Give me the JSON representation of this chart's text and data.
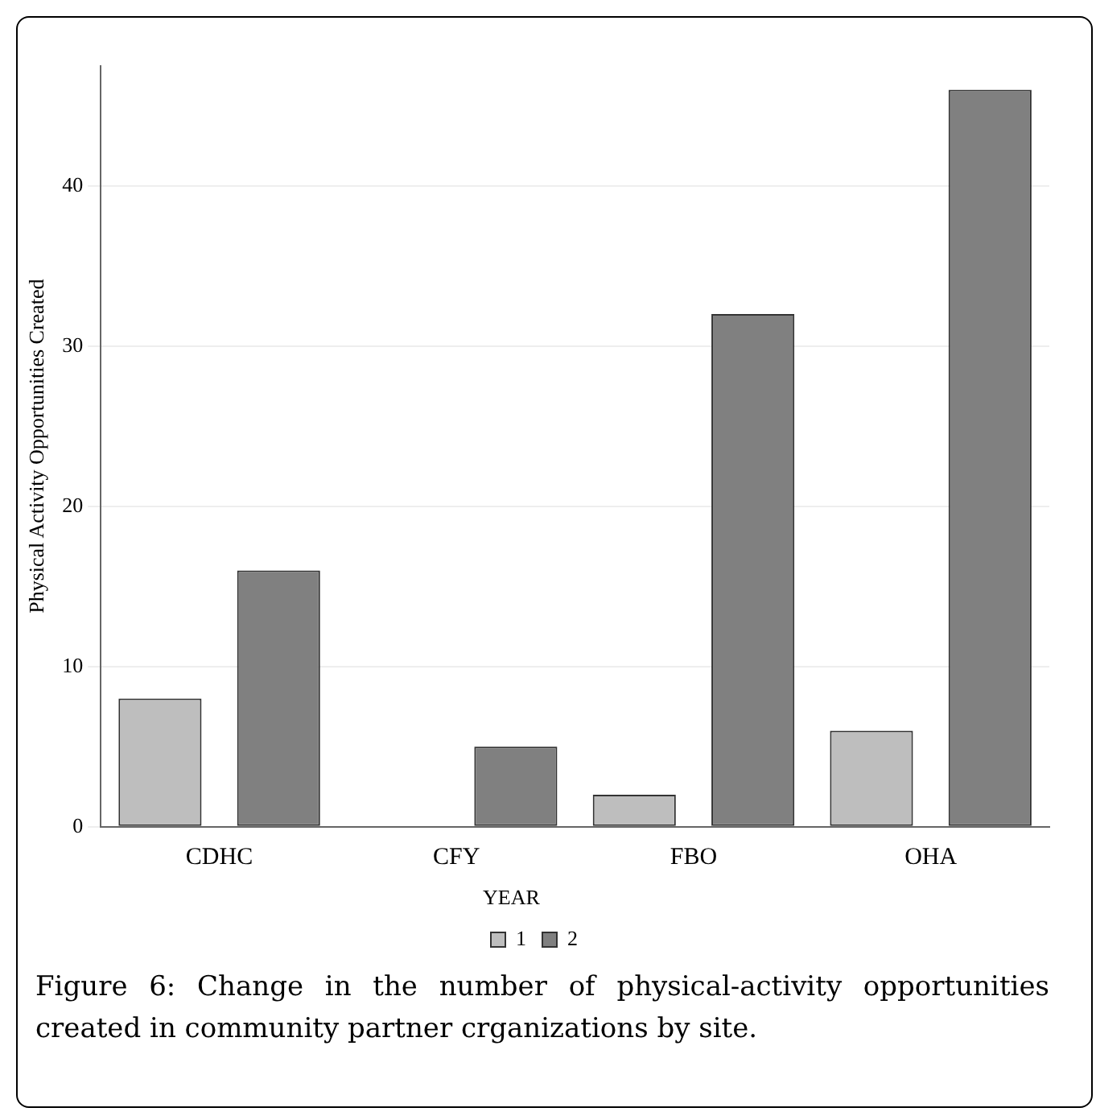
{
  "chart_data": {
    "type": "bar",
    "ylabel": "Physical Activity Opportunities Created",
    "categories": [
      "CDHC",
      "CFY",
      "FBO",
      "OHA"
    ],
    "series": [
      {
        "name": "1",
        "color": "#bebebe",
        "values": [
          8,
          0,
          2,
          6
        ]
      },
      {
        "name": "2",
        "color": "#808080",
        "values": [
          16,
          5,
          32,
          46
        ]
      }
    ],
    "ylim": [
      0,
      47.5
    ],
    "yticks": [
      0,
      10,
      20,
      30,
      40
    ],
    "grid": "y",
    "legend": "bottom",
    "legend_title": "YEAR",
    "annotations": [
      "Figure 6: Change in the number of physical-activity opportunities created in community partner crganizations by site."
    ]
  }
}
